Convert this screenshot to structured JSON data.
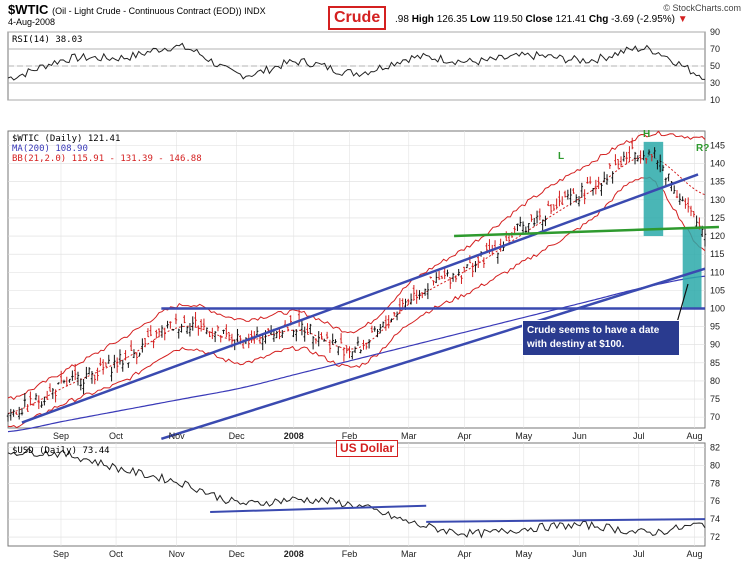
{
  "header": {
    "symbol": "$WTIC",
    "description": "(Oil - Light Crude - Continuous Contract (EOD)) INDX",
    "date": "4-Aug-2008",
    "callout": "Crude",
    "quote_prefix": ".98",
    "high_label": "High",
    "high": "126.35",
    "low_label": "Low",
    "low": "119.50",
    "close_label": "Close",
    "close": "121.41",
    "chg_label": "Chg",
    "chg": "-3.69 (-2.95%)",
    "chg_icon": "down-triangle-icon",
    "copyright": "© StockCharts.com"
  },
  "colors": {
    "price": "#d42020",
    "bars": "#000000",
    "ma": "#3a3ab8",
    "trend": "#3a4ab0",
    "support": "#2e9a2e",
    "highlight": "#2aa9a9",
    "callout": "#d42020"
  },
  "rsi_panel": {
    "label": "RSI(14) 38.03",
    "ticks": [
      "90",
      "70",
      "50",
      "30",
      "10"
    ]
  },
  "price_panel": {
    "legend": [
      {
        "text": "$WTIC (Daily) 121.41",
        "color": "#000000"
      },
      {
        "text": "MA(200) 108.90",
        "color": "#3a3ab8"
      },
      {
        "text": "BB(21,2.0) 115.91 - 131.39 - 146.88",
        "color": "#d42020"
      }
    ],
    "ticks": [
      "145",
      "140",
      "135",
      "130",
      "125",
      "120",
      "115",
      "110",
      "105",
      "100",
      "95",
      "90",
      "85",
      "80",
      "75",
      "70"
    ],
    "annotations": {
      "left_shoulder": "L",
      "head": "H",
      "right_shoulder": "R?",
      "note": "Crude seems to have a date with destiny at $100."
    }
  },
  "usd_panel": {
    "label": "$USD (Daily) 73.44",
    "callout": "US Dollar",
    "ticks": [
      "82",
      "80",
      "78",
      "76",
      "74",
      "72"
    ]
  },
  "x_axis": {
    "labels": [
      "Sep",
      "Oct",
      "Nov",
      "Dec",
      "2008",
      "Feb",
      "Mar",
      "Apr",
      "May",
      "Jun",
      "Jul",
      "Aug"
    ]
  },
  "chart_data": [
    {
      "type": "line",
      "name": "RSI(14)",
      "ylim": [
        10,
        90
      ],
      "x": [
        "Aug",
        "Sep",
        "Oct",
        "Nov",
        "Dec",
        "2008",
        "Feb",
        "Mar",
        "Apr",
        "May",
        "Jun",
        "Jul",
        "Aug"
      ],
      "values": [
        36,
        58,
        60,
        72,
        40,
        55,
        42,
        60,
        55,
        62,
        57,
        70,
        38
      ],
      "reference_lines": [
        70,
        50,
        30
      ]
    },
    {
      "type": "bar",
      "ylim": [
        67,
        149
      ],
      "x": [
        "Aug",
        "Sep",
        "Oct",
        "Nov",
        "Dec",
        "2008",
        "Feb",
        "Mar",
        "Apr",
        "May",
        "Jun",
        "Jul",
        "Aug"
      ],
      "close": [
        71,
        79,
        86,
        96,
        91,
        95,
        89,
        104,
        112,
        124,
        133,
        143,
        121.41
      ],
      "ma200": [
        66,
        69,
        72,
        75,
        78,
        82,
        86,
        90,
        94,
        98,
        102,
        106,
        108.9
      ],
      "bb_upper": [
        75,
        83,
        92,
        101,
        97,
        99,
        94,
        108,
        118,
        130,
        140,
        148,
        146.88
      ],
      "bb_lower": [
        67,
        74,
        80,
        89,
        85,
        89,
        84,
        97,
        105,
        114,
        124,
        136,
        115.91
      ],
      "trendlines": [
        {
          "name": "uptrend-1",
          "from": [
            0.02,
            68.5
          ],
          "to": [
            0.99,
            137
          ]
        },
        {
          "name": "uptrend-2",
          "from": [
            0.22,
            64
          ],
          "to": [
            1.0,
            111
          ]
        },
        {
          "name": "support-100",
          "from": [
            0.22,
            100
          ],
          "to": [
            1.0,
            100
          ],
          "label": "100"
        },
        {
          "name": "neckline",
          "from": [
            0.64,
            120
          ],
          "to": [
            1.02,
            122.5
          ]
        }
      ]
    },
    {
      "type": "line",
      "name": "$USD (Daily)",
      "ylim": [
        71,
        82.5
      ],
      "x": [
        "Aug",
        "Sep",
        "Oct",
        "Nov",
        "Dec",
        "2008",
        "Feb",
        "Mar",
        "Apr",
        "May",
        "Jun",
        "Jul",
        "Aug"
      ],
      "values": [
        81.5,
        81.2,
        79.5,
        78,
        75.8,
        76.2,
        75.5,
        73.5,
        72.4,
        73,
        73.3,
        72.5,
        73.44
      ]
    }
  ]
}
